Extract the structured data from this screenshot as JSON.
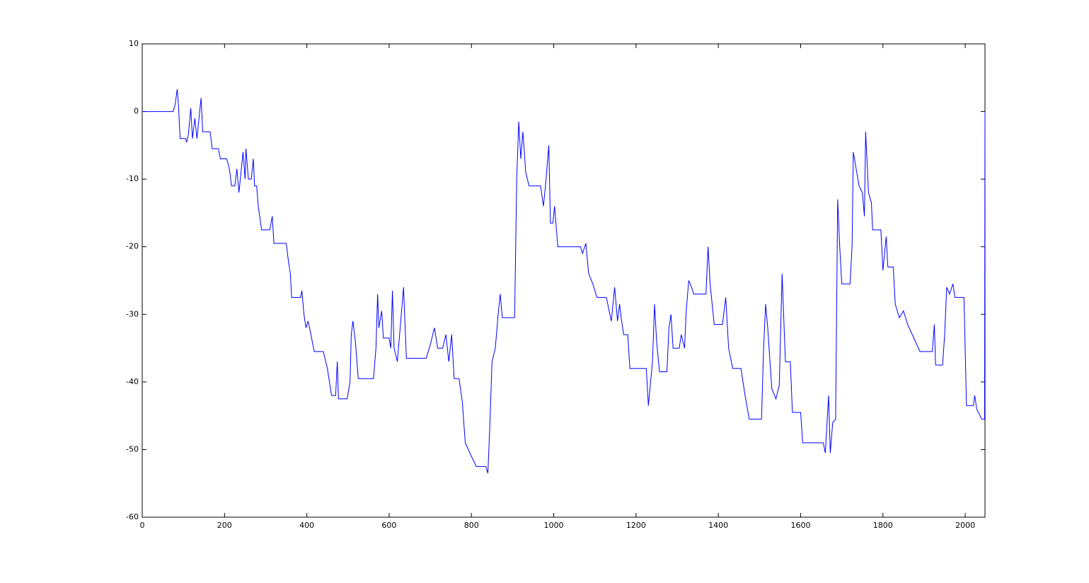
{
  "chart_data": {
    "type": "line",
    "color": "#0000ff",
    "x": [
      0,
      75,
      80,
      85,
      88,
      92,
      105,
      108,
      112,
      118,
      122,
      128,
      133,
      138,
      143,
      147,
      165,
      170,
      185,
      190,
      205,
      210,
      213,
      217,
      225,
      230,
      235,
      240,
      245,
      250,
      252,
      258,
      265,
      270,
      273,
      278,
      282,
      290,
      310,
      316,
      320,
      350,
      355,
      360,
      363,
      385,
      388,
      393,
      398,
      403,
      410,
      418,
      440,
      450,
      460,
      470,
      474,
      477,
      498,
      505,
      508,
      512,
      518,
      525,
      562,
      568,
      572,
      575,
      582,
      586,
      600,
      604,
      608,
      612,
      620,
      635,
      642,
      690,
      700,
      710,
      718,
      730,
      738,
      745,
      752,
      758,
      770,
      778,
      785,
      800,
      812,
      835,
      840,
      845,
      850,
      858,
      865,
      870,
      875,
      905,
      910,
      915,
      920,
      925,
      932,
      940,
      968,
      975,
      980,
      988,
      992,
      998,
      1002,
      1010,
      1065,
      1070,
      1078,
      1085,
      1095,
      1105,
      1128,
      1133,
      1140,
      1148,
      1155,
      1160,
      1165,
      1170,
      1180,
      1185,
      1225,
      1230,
      1240,
      1245,
      1250,
      1257,
      1275,
      1280,
      1285,
      1290,
      1305,
      1310,
      1318,
      1322,
      1328,
      1335,
      1340,
      1370,
      1375,
      1380,
      1390,
      1410,
      1418,
      1425,
      1435,
      1455,
      1465,
      1475,
      1505,
      1510,
      1515,
      1520,
      1530,
      1540,
      1548,
      1555,
      1563,
      1575,
      1580,
      1600,
      1605,
      1655,
      1660,
      1668,
      1672,
      1678,
      1685,
      1690,
      1695,
      1700,
      1720,
      1725,
      1728,
      1735,
      1742,
      1750,
      1755,
      1758,
      1765,
      1772,
      1775,
      1795,
      1800,
      1808,
      1812,
      1825,
      1830,
      1840,
      1850,
      1860,
      1875,
      1890,
      1920,
      1925,
      1928,
      1945,
      1950,
      1955,
      1962,
      1970,
      1975,
      1997,
      2003,
      2020,
      2023,
      2028,
      2040,
      2047,
      2048
    ],
    "values": [
      0,
      0,
      1,
      3.3,
      1,
      -4,
      -4,
      -4.5,
      -3.5,
      0.5,
      -4,
      -1,
      -4,
      -1,
      2,
      -3,
      -3,
      -5.5,
      -5.5,
      -7,
      -7,
      -8,
      -9,
      -11,
      -11,
      -8.5,
      -12,
      -9,
      -6,
      -10,
      -5.5,
      -10,
      -10,
      -7,
      -11,
      -11,
      -14,
      -17.5,
      -17.5,
      -15.5,
      -19.5,
      -19.5,
      -22,
      -24,
      -27.5,
      -27.5,
      -26.5,
      -30,
      -32,
      -31,
      -33,
      -35.5,
      -35.5,
      -38,
      -42,
      -42,
      -37,
      -42.5,
      -42.5,
      -40,
      -33,
      -31,
      -34,
      -39.5,
      -39.5,
      -35,
      -27,
      -32,
      -29.5,
      -33.5,
      -33.5,
      -35,
      -26.5,
      -35,
      -37,
      -26,
      -36.5,
      -36.5,
      -34.5,
      -32,
      -35,
      -35,
      -33,
      -37,
      -33,
      -39.5,
      -39.5,
      -43,
      -49,
      -51,
      -52.5,
      -52.5,
      -53.5,
      -46,
      -37,
      -35,
      -30,
      -27,
      -30.5,
      -30.5,
      -10,
      -1.5,
      -7,
      -3,
      -9,
      -11,
      -11,
      -14,
      -11,
      -5,
      -16.5,
      -16.5,
      -14,
      -20,
      -20,
      -21,
      -19.5,
      -24,
      -25.5,
      -27.5,
      -27.5,
      -29,
      -31,
      -26,
      -31,
      -28.5,
      -31,
      -33,
      -33,
      -38,
      -38,
      -43.5,
      -37,
      -28.5,
      -34,
      -38.5,
      -38.5,
      -32,
      -30,
      -35,
      -35,
      -33,
      -35,
      -29.5,
      -25,
      -26,
      -27,
      -27,
      -20,
      -25.5,
      -31.5,
      -31.5,
      -27.5,
      -35,
      -38,
      -38,
      -42,
      -45.5,
      -45.5,
      -35,
      -28.5,
      -32,
      -41,
      -42.5,
      -40.5,
      -24,
      -37,
      -37,
      -44.5,
      -44.5,
      -49,
      -49,
      -50.5,
      -42,
      -50.5,
      -46,
      -45.5,
      -13,
      -20,
      -25.5,
      -25.5,
      -20,
      -6,
      -8.5,
      -11,
      -12,
      -15.5,
      -3,
      -12,
      -13.5,
      -17.5,
      -17.5,
      -23.5,
      -18.5,
      -23,
      -23,
      -28.5,
      -30.5,
      -29.5,
      -31.5,
      -33.5,
      -35.5,
      -35.5,
      -31.5,
      -37.5,
      -37.5,
      -33,
      -26,
      -27,
      -25.5,
      -27.5,
      -27.5,
      -43.5,
      -43.5,
      -42,
      -44,
      -45.5,
      -45.5,
      0
    ],
    "xlim": [
      0,
      2048
    ],
    "ylim": [
      -60,
      10
    ],
    "xticks": [
      0,
      200,
      400,
      600,
      800,
      1000,
      1200,
      1400,
      1600,
      1800,
      2000
    ],
    "yticks": [
      -60,
      -50,
      -40,
      -30,
      -20,
      -10,
      0,
      10
    ]
  }
}
